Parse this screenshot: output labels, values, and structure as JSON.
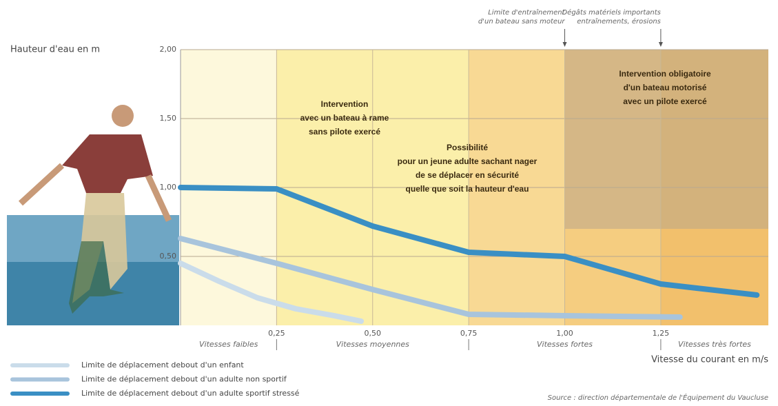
{
  "chart_data": {
    "type": "line",
    "ylabel": "Hauteur d'eau en m",
    "xlabel": "Vitesse du courant en m/s",
    "xlim": [
      0,
      1.53
    ],
    "ylim": [
      0,
      2
    ],
    "xticks": [
      {
        "value": 0.25,
        "label": "0,25"
      },
      {
        "value": 0.5,
        "label": "0,50"
      },
      {
        "value": 0.75,
        "label": "0,75"
      },
      {
        "value": 1.0,
        "label": "1,00"
      },
      {
        "value": 1.25,
        "label": "1,25"
      }
    ],
    "yticks": [
      {
        "value": 0.5,
        "label": "0,50"
      },
      {
        "value": 1.0,
        "label": "1,00"
      },
      {
        "value": 1.5,
        "label": "1,50"
      },
      {
        "value": 2.0,
        "label": "2,00"
      }
    ],
    "grid": true,
    "bands": [
      {
        "from": 0,
        "to": 0.25,
        "color": "#fdf8dc"
      },
      {
        "from": 0.25,
        "to": 0.75,
        "color": "#fbefaa"
      },
      {
        "from": 0.75,
        "to": 1.0,
        "color": "#f8d994"
      },
      {
        "from": 1.0,
        "to": 1.25,
        "color": "#f5cd80"
      },
      {
        "from": 1.25,
        "to": 1.53,
        "color": "#f2c06c"
      }
    ],
    "speed_classes": [
      {
        "from": 0,
        "to": 0.25,
        "label": "Vitesses faibles"
      },
      {
        "from": 0.25,
        "to": 0.75,
        "label": "Vitesses moyennes"
      },
      {
        "from": 0.75,
        "to": 1.25,
        "label": "Vitesses fortes"
      },
      {
        "from": 1.25,
        "to": 1.53,
        "label": "Vitesses très fortes"
      }
    ],
    "motor_zone": {
      "from": 1.0,
      "to": 1.53,
      "ymin": 0.7,
      "ymax": 2,
      "color": "#b9a68a"
    },
    "markers": [
      {
        "x": 1.0,
        "text": [
          "Limite d'entraînement",
          "d'un bateau sans moteur"
        ]
      },
      {
        "x": 1.25,
        "text": [
          "Dégâts matériels importants",
          "entraînements, érosions"
        ]
      }
    ],
    "annotations": [
      [
        "Intervention",
        "avec un bateau à rame",
        "sans pilote exercé"
      ],
      [
        "Possibilité",
        "pour un jeune adulte sachant nager",
        "de se déplacer en sécurité",
        "quelle que soit la hauteur d'eau"
      ],
      [
        "Intervention obligatoire",
        "d'un bateau motorisé",
        "avec un pilote exercé"
      ]
    ],
    "series": [
      {
        "name": "Limite de déplacement debout d'un enfant",
        "color": "#cadcea",
        "x": [
          0,
          0.1,
          0.2,
          0.3,
          0.4,
          0.47
        ],
        "values": [
          0.45,
          0.32,
          0.2,
          0.12,
          0.07,
          0.03
        ]
      },
      {
        "name": "Limite de déplacement debout d'un adulte non sportif",
        "color": "#a8c4dc",
        "x": [
          0,
          0.25,
          0.5,
          0.75,
          1.0,
          1.3
        ],
        "values": [
          0.63,
          0.45,
          0.26,
          0.08,
          0.07,
          0.06
        ]
      },
      {
        "name": "Limite de déplacement debout d'un adulte sportif stressé",
        "color": "#3a8fc4",
        "x": [
          0,
          0.25,
          0.5,
          0.75,
          1.0,
          1.25,
          1.5
        ],
        "values": [
          1.0,
          0.99,
          0.72,
          0.53,
          0.5,
          0.3,
          0.22
        ]
      }
    ],
    "source": "Source : direction départementale de l'Équipement du Vaucluse"
  }
}
